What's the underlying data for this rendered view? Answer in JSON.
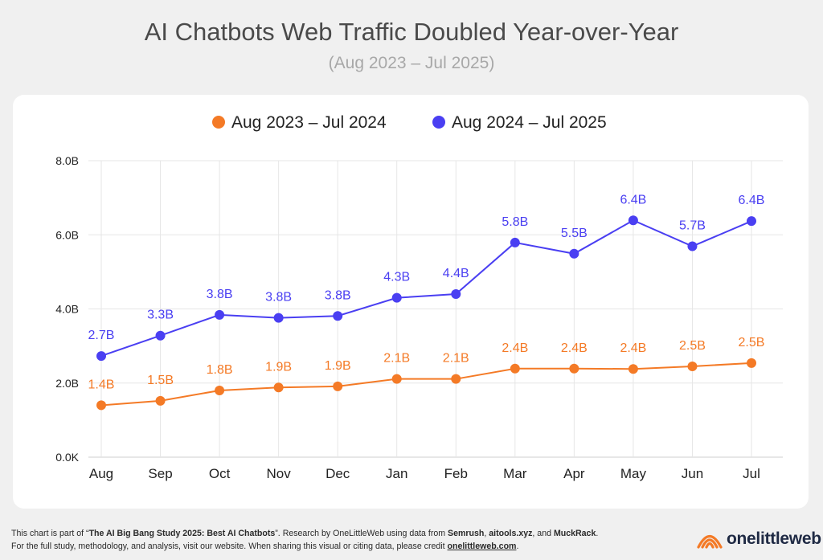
{
  "header": {
    "title": "AI Chatbots Web Traffic Doubled Year-over-Year",
    "subtitle": "(Aug 2023 – Jul 2025)"
  },
  "colors": {
    "series1": "#f47a26",
    "series2": "#4a3ff2",
    "grid": "#e6e6e6",
    "axis_text": "#222222"
  },
  "chart_data": {
    "type": "line",
    "categories": [
      "Aug",
      "Sep",
      "Oct",
      "Nov",
      "Dec",
      "Jan",
      "Feb",
      "Mar",
      "Apr",
      "May",
      "Jun",
      "Jul"
    ],
    "y_ticks": [
      "0.0K",
      "2.0B",
      "4.0B",
      "6.0B",
      "8.0B"
    ],
    "ylim": [
      0,
      8
    ],
    "legend_position": "top-center",
    "grid": true,
    "series": [
      {
        "name": "Aug 2023 – Jul 2024",
        "color": "#f47a26",
        "values": [
          1.4,
          1.52,
          1.8,
          1.88,
          1.91,
          2.11,
          2.11,
          2.39,
          2.39,
          2.38,
          2.45,
          2.54
        ],
        "labels": [
          "1.4B",
          "1.5B",
          "1.8B",
          "1.9B",
          "1.9B",
          "2.1B",
          "2.1B",
          "2.4B",
          "2.4B",
          "2.4B",
          "2.5B",
          "2.5B"
        ]
      },
      {
        "name": "Aug 2024 – Jul 2025",
        "color": "#4a3ff2",
        "values": [
          2.73,
          3.28,
          3.84,
          3.76,
          3.81,
          4.3,
          4.4,
          5.79,
          5.49,
          6.39,
          5.69,
          6.37
        ],
        "labels": [
          "2.7B",
          "3.3B",
          "3.8B",
          "3.8B",
          "3.8B",
          "4.3B",
          "4.4B",
          "5.8B",
          "5.5B",
          "6.4B",
          "5.7B",
          "6.4B"
        ]
      }
    ]
  },
  "footer": {
    "line1_pre": "This chart is part of “",
    "line1_study": "The AI Big Bang Study 2025: Best AI Chatbots",
    "line1_mid": "”. Research by OneLittleWeb using data from ",
    "line1_src1": "Semrush",
    "line1_sep1": ", ",
    "line1_src2": "aitools.xyz",
    "line1_sep2": ", and ",
    "line1_src3": "MuckRack",
    "line1_end": ".",
    "line2_pre": "For the full study, methodology, and analysis, visit our website. When sharing this visual or citing data, please credit ",
    "line2_link": "onelittleweb.com",
    "line2_end": "."
  },
  "logo": {
    "text": "onelittleweb",
    "icon": "onelittleweb-logo-icon"
  }
}
